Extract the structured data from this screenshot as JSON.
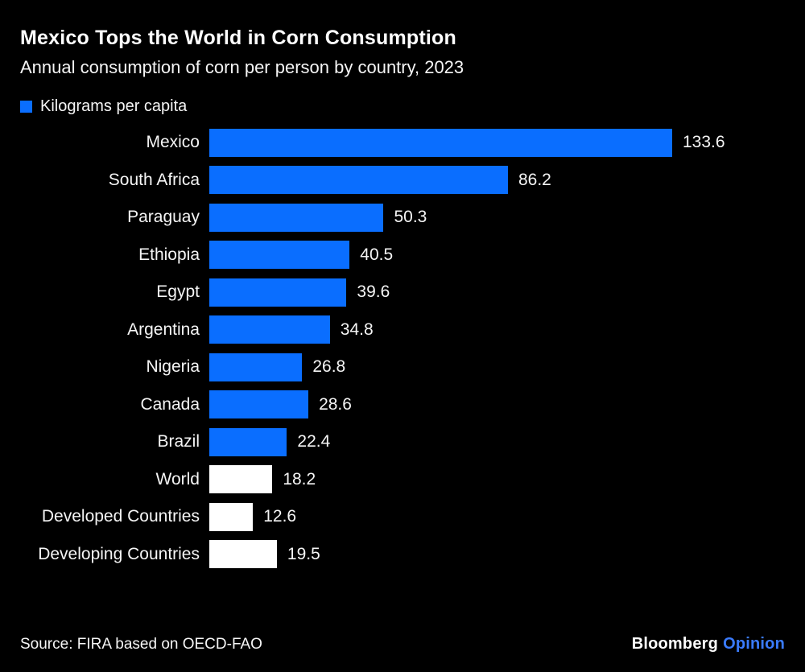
{
  "header": {
    "title": "Mexico Tops the World in Corn Consumption",
    "subtitle": "Annual consumption of corn per person by country, 2023"
  },
  "legend": {
    "label": "Kilograms per capita",
    "swatch_color": "#0a6eff"
  },
  "chart_data": {
    "type": "bar",
    "orientation": "horizontal",
    "title": "Mexico Tops the World in Corn Consumption",
    "subtitle": "Annual consumption of corn per person by country, 2023",
    "unit": "Kilograms per capita",
    "categories": [
      "Mexico",
      "South Africa",
      "Paraguay",
      "Ethiopia",
      "Egypt",
      "Argentina",
      "Nigeria",
      "Canada",
      "Brazil",
      "World",
      "Developed Countries",
      "Developing Countries"
    ],
    "values": [
      133.6,
      86.2,
      50.3,
      40.5,
      39.6,
      34.8,
      26.8,
      28.6,
      22.4,
      18.2,
      12.6,
      19.5
    ],
    "value_labels": [
      "133.6",
      "86.2",
      "50.3",
      "40.5",
      "39.6",
      "34.8",
      "26.8",
      "28.6",
      "22.4",
      "18.2",
      "12.6",
      "19.5"
    ],
    "bar_colors": [
      "#0a6eff",
      "#0a6eff",
      "#0a6eff",
      "#0a6eff",
      "#0a6eff",
      "#0a6eff",
      "#0a6eff",
      "#0a6eff",
      "#0a6eff",
      "#ffffff",
      "#ffffff",
      "#ffffff"
    ],
    "xlim": [
      0,
      140
    ],
    "grid": false,
    "axis_lines": false,
    "legend_position": "top-left",
    "year": "2023"
  },
  "footer": {
    "source": "Source: FIRA based on OECD-FAO",
    "brand": "Bloomberg",
    "brand_suffix": "Opinion",
    "brand_suffix_color": "#3a7bff"
  },
  "colors": {
    "background": "#000000",
    "bar_blue": "#0a6eff",
    "bar_white": "#ffffff",
    "text": "#ffffff"
  }
}
